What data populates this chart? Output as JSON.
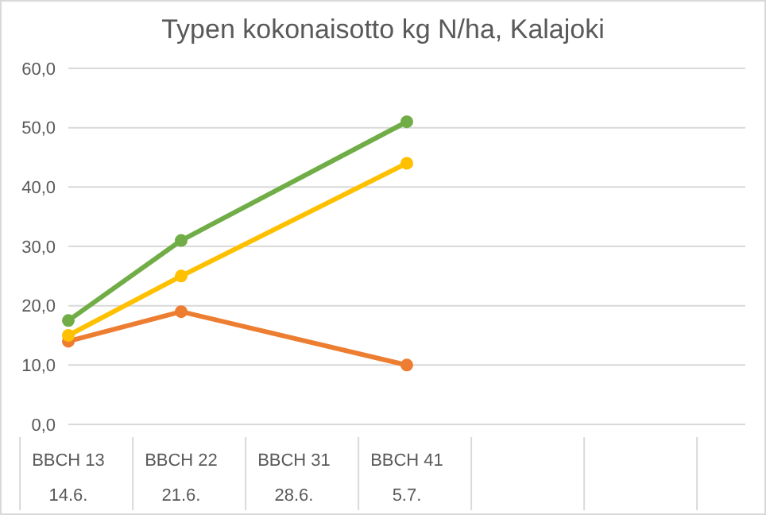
{
  "chart_data": {
    "type": "line",
    "title": "Typen kokonaisotto kg N/ha, Kalajoki",
    "categories": [
      "BBCH 13\n14.6.",
      "BBCH 22\n21.6.",
      "BBCH 31\n28.6.",
      "BBCH 41\n5.7.",
      null,
      null,
      null
    ],
    "series": [
      {
        "color": "#ed7d31",
        "values": [
          14,
          19,
          null,
          10,
          null,
          null,
          null
        ]
      },
      {
        "color": "#ffc000",
        "values": [
          15,
          25,
          null,
          44,
          null,
          null,
          null
        ]
      },
      {
        "color": "#70ad47",
        "values": [
          17.5,
          31,
          null,
          51,
          null,
          null,
          null
        ]
      }
    ],
    "ylim": [
      0,
      60
    ],
    "yticks": [
      {
        "value": 0,
        "label": "0,0"
      },
      {
        "value": 10,
        "label": "10,0"
      },
      {
        "value": 20,
        "label": "20,0"
      },
      {
        "value": 30,
        "label": "30,0"
      },
      {
        "value": 40,
        "label": "40,0"
      },
      {
        "value": 50,
        "label": "50,0"
      },
      {
        "value": 60,
        "label": "60,0"
      }
    ],
    "grid": "y",
    "marker": "circle"
  }
}
